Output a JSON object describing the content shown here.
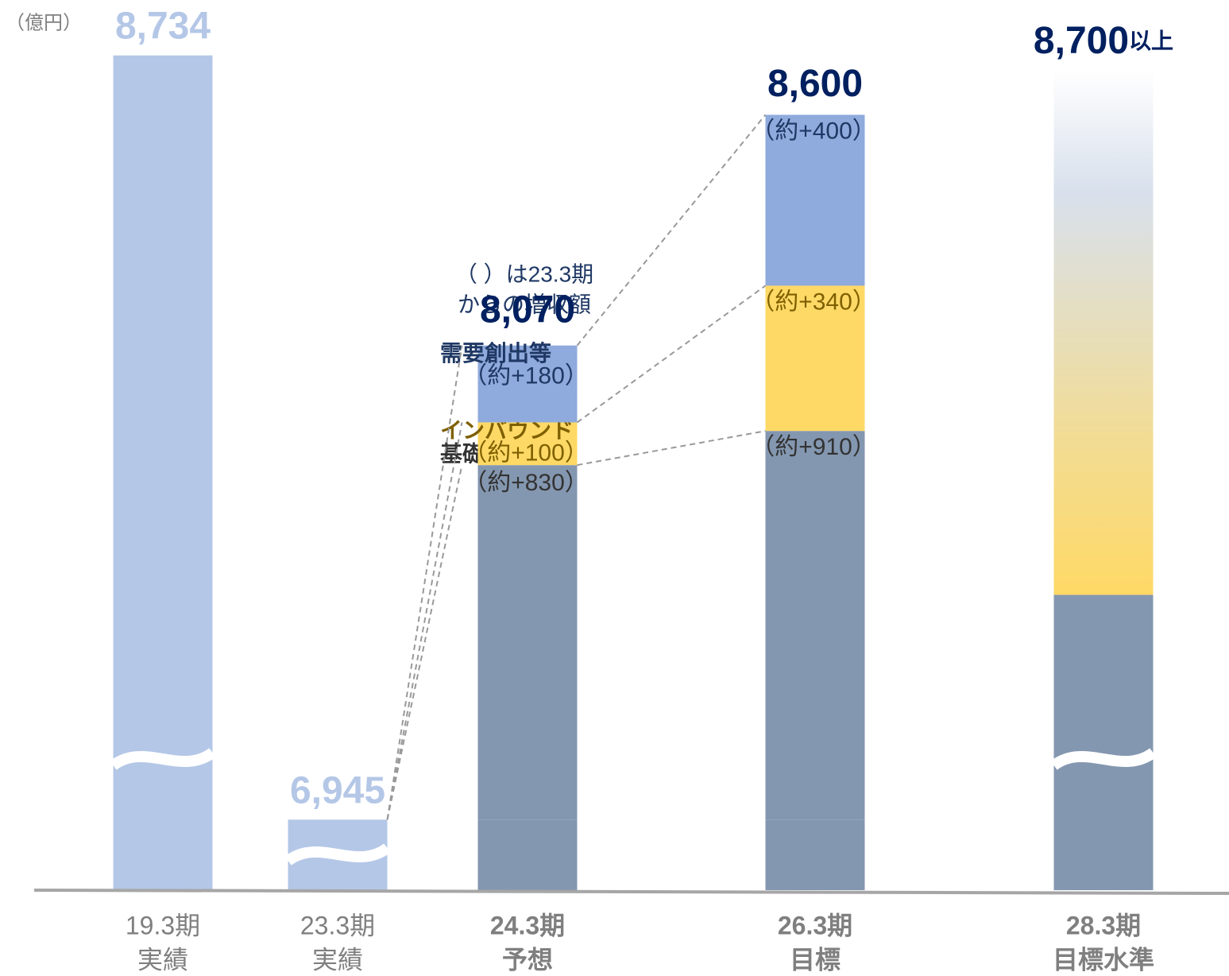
{
  "chart_data": {
    "type": "bar",
    "unit": "（億円）",
    "note": [
      "（ ）は23.3期",
      "からの増収額"
    ],
    "categories": [
      [
        "19.3期",
        "実績"
      ],
      [
        "23.3期",
        "実績"
      ],
      [
        "24.3期",
        "予想"
      ],
      [
        "26.3期",
        "目標"
      ],
      [
        "28.3期",
        "目標水準"
      ]
    ],
    "totals": [
      8734,
      6945,
      8070,
      8600,
      8700
    ],
    "total_labels": [
      "8,734",
      "6,945",
      "8,070",
      "8,600",
      "8,700"
    ],
    "total_suffix": "以上",
    "total_colors": [
      "#b4c7e7",
      "#b4c7e7",
      "#002060",
      "#002060",
      "#002060"
    ],
    "bar_color": "#b4c7e7",
    "base": [
      null,
      null,
      6945,
      6945,
      null
    ],
    "base_color": "#8497b0",
    "series": [
      {
        "name": "基礎的ご利用",
        "color": "#8497b0",
        "name_color": "#333333",
        "label_color": "#333333",
        "values": [
          null,
          null,
          830,
          910,
          null
        ],
        "value_labels": [
          null,
          null,
          "（約+830）",
          "（約+910）",
          null
        ]
      },
      {
        "name": "インバウンド",
        "color": "#ffd966",
        "name_color": "#7f6000",
        "label_color": "#7f6000",
        "values": [
          null,
          null,
          100,
          340,
          null
        ],
        "value_labels": [
          null,
          null,
          "（約+100）",
          "（約+340）",
          null
        ]
      },
      {
        "name": "需要創出等",
        "color": "#8faadc",
        "name_color": "#1f3864",
        "label_color": "#1f3864",
        "values": [
          null,
          null,
          180,
          400,
          null
        ],
        "value_labels": [
          null,
          null,
          "（約+180）",
          "（約+400）",
          null
        ]
      }
    ],
    "ylim": [
      6780,
      8780
    ],
    "axis_break": true
  }
}
